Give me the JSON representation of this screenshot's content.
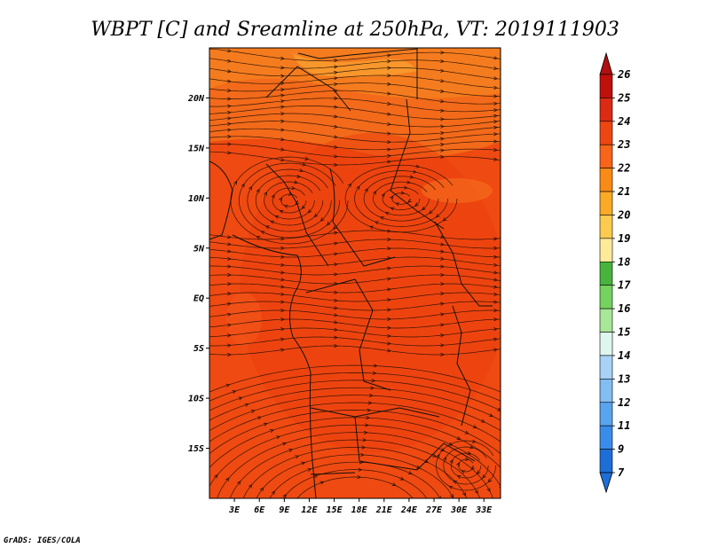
{
  "title": "WBPT [C] and Sreamline at 250hPa, VT: 2019111903",
  "credit": "GrADS: IGES/COLA",
  "map": {
    "lat_labels": [
      "20N",
      "15N",
      "10N",
      "5N",
      "EQ",
      "5S",
      "10S",
      "15S"
    ],
    "lat_values": [
      20,
      15,
      10,
      5,
      0,
      -5,
      -10,
      -15
    ],
    "lon_labels": [
      "3E",
      "6E",
      "9E",
      "12E",
      "15E",
      "18E",
      "21E",
      "24E",
      "27E",
      "30E",
      "33E"
    ],
    "lon_values": [
      3,
      6,
      9,
      12,
      15,
      18,
      21,
      24,
      27,
      30,
      33
    ],
    "extent": {
      "lon_min": 0,
      "lon_max": 35,
      "lat_min": -20,
      "lat_max": 25
    },
    "fill_color": "#f04a10"
  },
  "colorbar": {
    "labels": [
      "26",
      "25",
      "24",
      "23",
      "22",
      "21",
      "20",
      "19",
      "18",
      "17",
      "16",
      "15",
      "14",
      "13",
      "12",
      "11",
      "9",
      "7"
    ],
    "colors": [
      "#c0100c",
      "#dc2a14",
      "#ee4610",
      "#f8641a",
      "#f98a16",
      "#fbaa26",
      "#fcca4e",
      "#fdeb9a",
      "#48b43e",
      "#76d25e",
      "#a8e698",
      "#dff6ee",
      "#a8d2f6",
      "#82bef2",
      "#58a4ee",
      "#3a8cea",
      "#1e6ed8"
    ],
    "top_arrow_color": "#b01010",
    "bottom_arrow_color": "#1e6ed8"
  }
}
